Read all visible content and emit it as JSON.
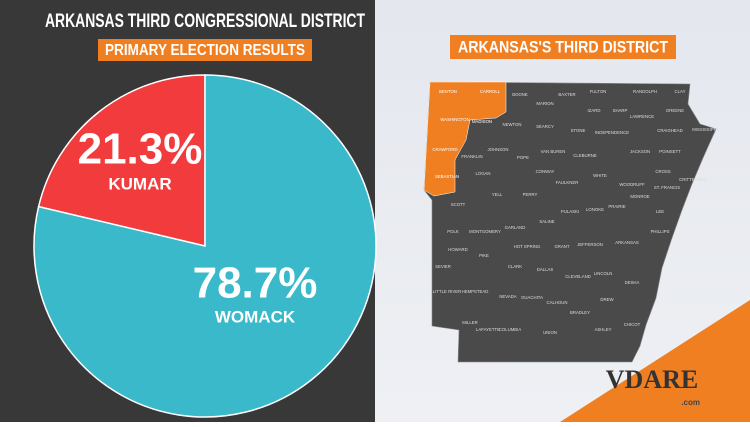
{
  "chart_data": {
    "type": "pie",
    "title": "ARKANSAS THIRD CONGRESSIONAL DISTRICT",
    "subtitle": "PRIMARY ELECTION RESULTS",
    "categories": [
      "KUMAR",
      "WOMACK"
    ],
    "values": [
      21.3,
      78.7
    ],
    "value_labels": [
      "21.3%",
      "78.7%"
    ],
    "colors": [
      "#f23b3d",
      "#39b9c9"
    ]
  },
  "map": {
    "title": "ARKANSAS'S THIRD DISTRICT",
    "highlighted_counties": [
      "BENTON",
      "CARROLL",
      "WASHINGTON",
      "MADISON",
      "CRAWFORD",
      "SEBASTIAN"
    ],
    "other_counties": [
      "BOONE",
      "MARION",
      "BAXTER",
      "FULTON",
      "RANDOLPH",
      "CLAY",
      "IZARD",
      "SHARP",
      "GREENE",
      "NEWTON",
      "SEARCY",
      "LAWRENCE",
      "STONE",
      "INDEPENDENCE",
      "CRAIGHEAD",
      "MISSISSIPPI",
      "JOHNSON",
      "VAN BUREN",
      "CLEBURNE",
      "JACKSON",
      "POINSETT",
      "FRANKLIN",
      "POPE",
      "LOGAN",
      "CONWAY",
      "WHITE",
      "CROSS",
      "ST. FRANCIS",
      "CRITTENDEN",
      "FAULKNER",
      "WOODRUFF",
      "YELL",
      "PERRY",
      "LONOKE",
      "MONROE",
      "PRAIRIE",
      "SCOTT",
      "PULASKI",
      "SALINE",
      "GARLAND",
      "MONTGOMERY",
      "POLK",
      "LEE",
      "PHILLIPS",
      "ARKANSAS",
      "JEFFERSON",
      "GRANT",
      "HOT SPRING",
      "HOWARD",
      "PIKE",
      "SEVIER",
      "CLARK",
      "DALLAS",
      "CLEVELAND",
      "LINCOLN",
      "DESHA",
      "LITTLE RIVER",
      "HEMPSTEAD",
      "NEVADA",
      "OUACHITA",
      "CALHOUN",
      "BRADLEY",
      "DREW",
      "CHICOT",
      "MILLER",
      "LAFAYETTE",
      "COLUMBIA",
      "UNION",
      "ASHLEY"
    ]
  },
  "watermark": {
    "brand": "VDARE",
    "suffix": ".com"
  }
}
